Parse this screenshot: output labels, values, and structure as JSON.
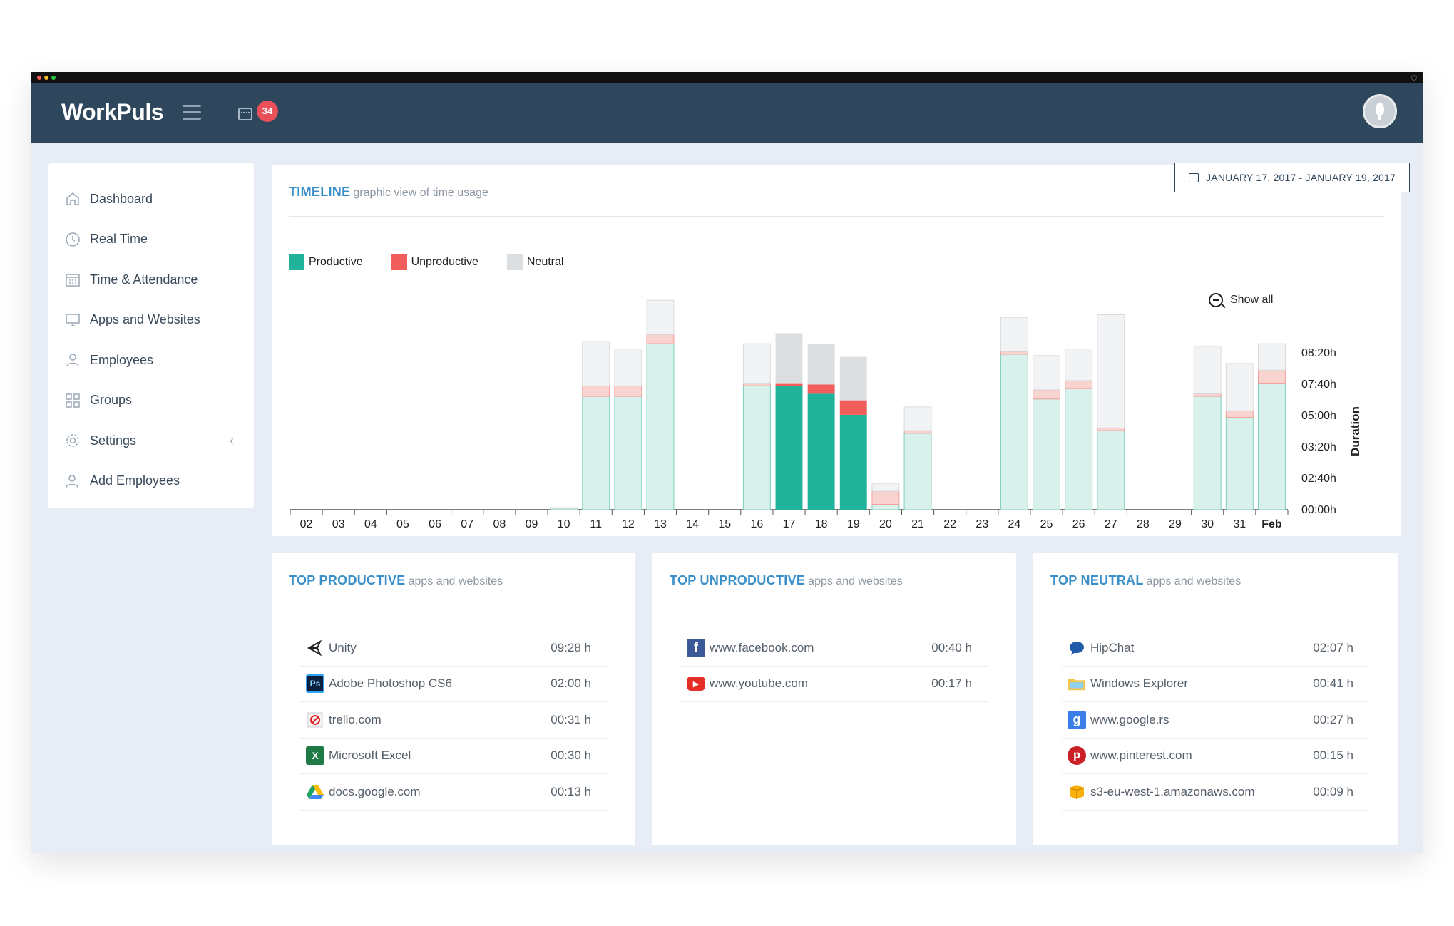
{
  "app": {
    "logo": "WorkPuls",
    "notification_count": "34"
  },
  "sidebar": {
    "items": [
      {
        "label": "Dashboard",
        "icon": "home-icon"
      },
      {
        "label": "Real Time",
        "icon": "clock-icon"
      },
      {
        "label": "Time & Attendance",
        "icon": "calendar-icon"
      },
      {
        "label": "Apps and Websites",
        "icon": "monitor-icon"
      },
      {
        "label": "Employees",
        "icon": "users-icon"
      },
      {
        "label": "Groups",
        "icon": "grid-icon"
      },
      {
        "label": "Settings",
        "icon": "gear-icon"
      },
      {
        "label": "Add Employees",
        "icon": "add-user-icon"
      }
    ]
  },
  "timeline": {
    "title": "TIMELINE",
    "subtitle": "graphic view of time usage",
    "date_range": "JANUARY 17, 2017 - JANUARY 19, 2017",
    "show_all": "Show all"
  },
  "colors": {
    "productive": "#20b39a",
    "productive_light": "#d9f1eb",
    "unproductive": "#f25e5b",
    "unproductive_light": "#f9d3cf",
    "neutral": "#dcdfe2",
    "neutral_light": "#f2f3f4"
  },
  "chart_data": {
    "type": "bar",
    "stacked": true,
    "categories": [
      "02",
      "03",
      "04",
      "05",
      "06",
      "07",
      "08",
      "09",
      "10",
      "11",
      "12",
      "13",
      "14",
      "15",
      "16",
      "17",
      "18",
      "19",
      "20",
      "21",
      "22",
      "23",
      "24",
      "25",
      "26",
      "27",
      "28",
      "29",
      "30",
      "31",
      "Feb"
    ],
    "highlighted": [
      "17",
      "18",
      "19"
    ],
    "series": [
      {
        "name": "Productive",
        "values": [
          0,
          0,
          0,
          0,
          0,
          0,
          0,
          0,
          0.05,
          4.3,
          4.3,
          6.3,
          0,
          0,
          4.7,
          4.7,
          4.4,
          3.6,
          0.2,
          2.9,
          0,
          0,
          5.9,
          4.2,
          4.6,
          3.0,
          0,
          0,
          4.3,
          3.5,
          4.8
        ]
      },
      {
        "name": "Unproductive",
        "values": [
          0,
          0,
          0,
          0,
          0,
          0,
          0,
          0,
          0,
          0.4,
          0.4,
          0.35,
          0,
          0,
          0.1,
          0.1,
          0.35,
          0.55,
          0.5,
          0.1,
          0,
          0,
          0.1,
          0.35,
          0.3,
          0.1,
          0,
          0,
          0.1,
          0.25,
          0.5
        ]
      },
      {
        "name": "Neutral",
        "values": [
          0,
          0,
          0,
          0,
          0,
          0,
          0,
          0,
          0.03,
          1.7,
          1.4,
          1.3,
          0,
          0,
          1.5,
          1.9,
          1.55,
          1.65,
          0.3,
          0.9,
          0,
          0,
          1.3,
          1.3,
          1.2,
          4.3,
          0,
          0,
          1.8,
          1.8,
          1.0
        ]
      }
    ],
    "y_ticks": [
      "00:00h",
      "02:40h",
      "03:20h",
      "05:00h",
      "07:40h",
      "08:20h"
    ],
    "ylabel": "Duration",
    "ylim": [
      0,
      8.333
    ],
    "legend": "top-left"
  },
  "top_productive": {
    "title": "TOP PRODUCTIVE",
    "subtitle": "apps and websites",
    "rows": [
      {
        "name": "Unity",
        "time": "09:28 h",
        "icon": "unity-icon"
      },
      {
        "name": "Adobe Photoshop CS6",
        "time": "02:00 h",
        "icon": "photoshop-icon"
      },
      {
        "name": "trello.com",
        "time": "00:31 h",
        "icon": "blocked-site-icon"
      },
      {
        "name": "Microsoft Excel",
        "time": "00:30 h",
        "icon": "excel-icon"
      },
      {
        "name": "docs.google.com",
        "time": "00:13 h",
        "icon": "google-drive-icon"
      }
    ]
  },
  "top_unproductive": {
    "title": "TOP UNPRODUCTIVE",
    "subtitle": "apps and websites",
    "rows": [
      {
        "name": "www.facebook.com",
        "time": "00:40 h",
        "icon": "facebook-icon"
      },
      {
        "name": "www.youtube.com",
        "time": "00:17 h",
        "icon": "youtube-icon"
      }
    ]
  },
  "top_neutral": {
    "title": "TOP NEUTRAL",
    "subtitle": "apps and websites",
    "rows": [
      {
        "name": "HipChat",
        "time": "02:07 h",
        "icon": "hipchat-icon"
      },
      {
        "name": "Windows Explorer",
        "time": "00:41 h",
        "icon": "folder-icon"
      },
      {
        "name": "www.google.rs",
        "time": "00:27 h",
        "icon": "google-icon"
      },
      {
        "name": "www.pinterest.com",
        "time": "00:15 h",
        "icon": "pinterest-icon"
      },
      {
        "name": "s3-eu-west-1.amazonaws.com",
        "time": "00:09 h",
        "icon": "amazon-aws-icon"
      }
    ]
  }
}
